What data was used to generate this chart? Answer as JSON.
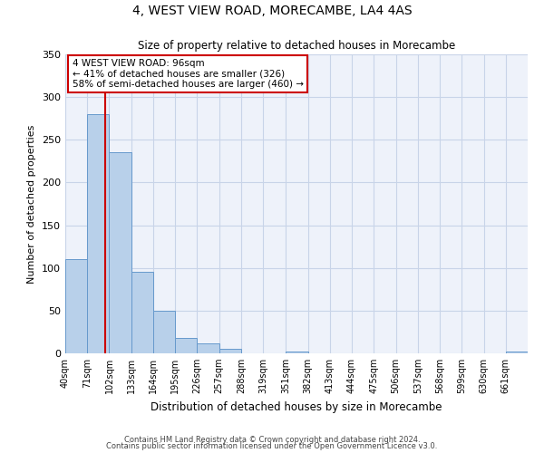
{
  "title": "4, WEST VIEW ROAD, MORECAMBE, LA4 4AS",
  "subtitle": "Size of property relative to detached houses in Morecambe",
  "xlabel": "Distribution of detached houses by size in Morecambe",
  "ylabel": "Number of detached properties",
  "bin_edges": [
    40,
    71,
    102,
    133,
    164,
    195,
    226,
    257,
    288,
    319,
    351,
    382,
    413,
    444,
    475,
    506,
    537,
    568,
    599,
    630,
    661
  ],
  "bar_heights": [
    110,
    280,
    235,
    95,
    50,
    18,
    12,
    5,
    0,
    0,
    2,
    0,
    0,
    0,
    0,
    0,
    0,
    0,
    0,
    0,
    2
  ],
  "bar_color": "#b8d0ea",
  "bar_edge_color": "#6699cc",
  "property_size": 96,
  "vline_color": "#cc0000",
  "annotation_text": "4 WEST VIEW ROAD: 96sqm\n← 41% of detached houses are smaller (326)\n58% of semi-detached houses are larger (460) →",
  "annotation_box_color": "#cc0000",
  "ylim": [
    0,
    350
  ],
  "yticks": [
    0,
    50,
    100,
    150,
    200,
    250,
    300,
    350
  ],
  "grid_color": "#c8d4e8",
  "bg_color": "#eef2fa",
  "footnote1": "Contains HM Land Registry data © Crown copyright and database right 2024.",
  "footnote2": "Contains public sector information licensed under the Open Government Licence v3.0."
}
